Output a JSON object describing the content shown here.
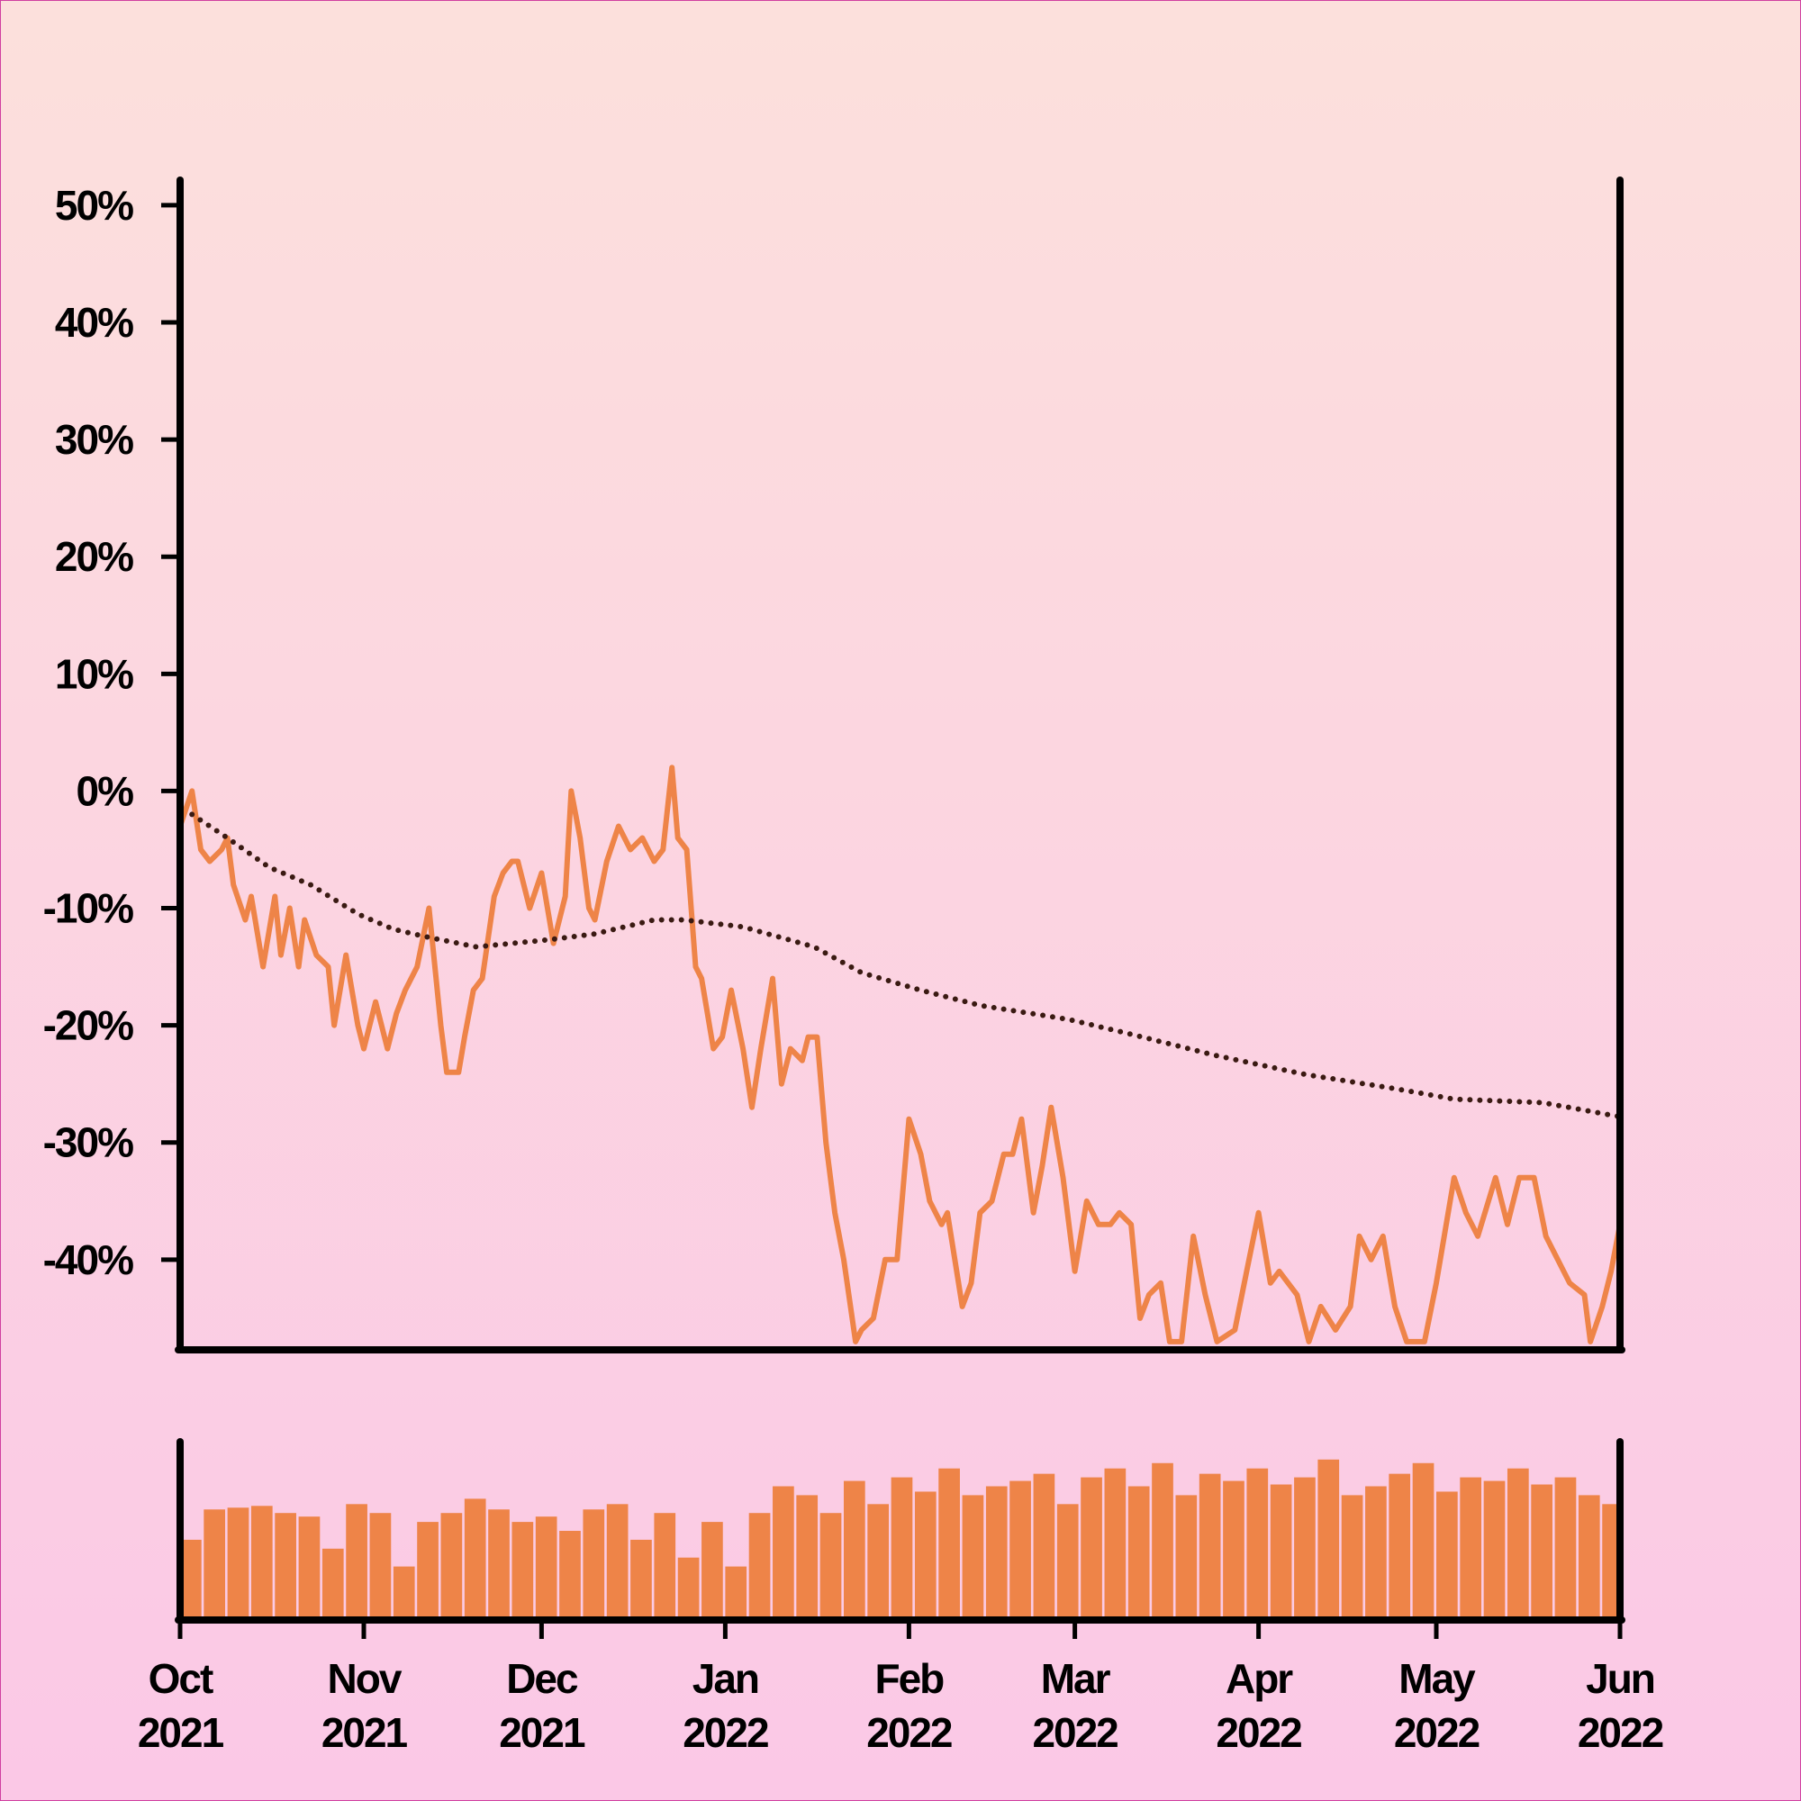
{
  "chart_data": [
    {
      "type": "line",
      "x": [
        0,
        2,
        3.5,
        5,
        7,
        8,
        9,
        11,
        12,
        14,
        16,
        17,
        18.5,
        20,
        21,
        23,
        25,
        26,
        28,
        30,
        31,
        33,
        35,
        36.5,
        38,
        40,
        42,
        44,
        45,
        47,
        48,
        49.5,
        51,
        53,
        54.5,
        56,
        57,
        59,
        61,
        63,
        65,
        66,
        67.5,
        69,
        70,
        72,
        74,
        76,
        78,
        80,
        81.5,
        83,
        84,
        85.5,
        87,
        88,
        90,
        91.5,
        93,
        95,
        96.5,
        98,
        100,
        101.5,
        103,
        105,
        106,
        107.5,
        109,
        110.5,
        112,
        114,
        115,
        117,
        119,
        121,
        123,
        125,
        126.5,
        128.5,
        129.5,
        132,
        133.5,
        135,
        137,
        139,
        140.5,
        142,
        144,
        145.5,
        147,
        149,
        151,
        153,
        155,
        157,
        158.5,
        160.5,
        162,
        163.5,
        165.5,
        167,
        169,
        171,
        173,
        175,
        178,
        180,
        182,
        184,
        185.5,
        188.5,
        190.5,
        192.5,
        195,
        197.5,
        199,
        201,
        203,
        205,
        207,
        210,
        212,
        215,
        217,
        219,
        222,
        224,
        226,
        228.5,
        230.5,
        232.5,
        234.5,
        237,
        238,
        240,
        241.5,
        243
      ],
      "series": [
        {
          "color": "#ee8448",
          "values": [
            -3,
            0,
            -5,
            -6,
            -5,
            -4,
            -8,
            -11,
            -9,
            -15,
            -9,
            -14,
            -10,
            -15,
            -11,
            -14,
            -15,
            -20,
            -14,
            -20,
            -22,
            -18,
            -22,
            -19,
            -17,
            -15,
            -10,
            -20,
            -24,
            -24,
            -21,
            -17,
            -16,
            -9,
            -7,
            -6,
            -6,
            -10,
            -7,
            -13,
            -9,
            0,
            -4,
            -10,
            -11,
            -6,
            -3,
            -5,
            -4,
            -6,
            -5,
            2,
            -4,
            -5,
            -15,
            -16,
            -22,
            -21,
            -17,
            -22,
            -27,
            -22,
            -16,
            -25,
            -22,
            -23,
            -21,
            -21,
            -30,
            -36,
            -40,
            -47,
            -46,
            -45,
            -40,
            -40,
            -28,
            -31,
            -35,
            -37,
            -36,
            -44,
            -42,
            -36,
            -35,
            -31,
            -31,
            -28,
            -36,
            -32,
            -27,
            -33,
            -41,
            -35,
            -37,
            -37,
            -36,
            -37,
            -45,
            -43,
            -42,
            -47,
            -47,
            -38,
            -43,
            -47,
            -46,
            -41,
            -36,
            -42,
            -41,
            -43,
            -47,
            -44,
            -46,
            -44,
            -38,
            -40,
            -38,
            -44,
            -47,
            -47,
            -42,
            -33,
            -36,
            -38,
            -33,
            -37,
            -33,
            -33,
            -38,
            -40,
            -42,
            -43,
            -47,
            -44,
            -41,
            -37
          ]
        },
        {
          "color": "#3a1a12",
          "style": "dotted",
          "x": [
            2,
            8,
            15,
            22,
            30,
            36,
            42,
            50,
            56,
            62,
            70,
            80,
            85,
            95,
            107,
            115,
            125,
            135,
            150,
            160,
            175,
            190,
            205,
            215,
            230,
            243
          ],
          "values": [
            -2,
            -4,
            -6.5,
            -8,
            -10.5,
            -11.8,
            -12.5,
            -13.3,
            -13,
            -12.7,
            -12.2,
            -11,
            -11,
            -11.6,
            -13.3,
            -15.5,
            -17,
            -18.3,
            -19.5,
            -20.7,
            -22.6,
            -24.2,
            -25.4,
            -26.3,
            -26.6,
            -27.8
          ]
        }
      ],
      "xlim": [
        0,
        243
      ],
      "ylim": [
        -47.7,
        52.3
      ],
      "yticks": [
        {
          "value": -40,
          "label": "-40%"
        },
        {
          "value": -30,
          "label": "-30%"
        },
        {
          "value": -20,
          "label": "-20%"
        },
        {
          "value": -10,
          "label": "-10%"
        },
        {
          "value": 0,
          "label": "0%"
        },
        {
          "value": 10,
          "label": "10%"
        },
        {
          "value": 20,
          "label": "20%"
        },
        {
          "value": 30,
          "label": "30%"
        },
        {
          "value": 40,
          "label": "40%"
        },
        {
          "value": 50,
          "label": "50%"
        }
      ]
    },
    {
      "type": "bar",
      "x": [
        0,
        4,
        8,
        12,
        16,
        20,
        24,
        28,
        32,
        36,
        40,
        44,
        48,
        52,
        56,
        60,
        64,
        68,
        72,
        76,
        80,
        84,
        88,
        92,
        96,
        100,
        104,
        108,
        112,
        116,
        120,
        124,
        128,
        132,
        136,
        140,
        144,
        148,
        152,
        156,
        160,
        164,
        168,
        172,
        176,
        180,
        184,
        188,
        192,
        196,
        200,
        204,
        208,
        212,
        216,
        220,
        224,
        228,
        232,
        236,
        240
      ],
      "values": [
        45,
        62,
        63,
        64,
        60,
        58,
        40,
        65,
        60,
        30,
        55,
        60,
        68,
        62,
        55,
        58,
        50,
        62,
        65,
        45,
        60,
        35,
        55,
        30,
        60,
        75,
        70,
        60,
        78,
        65,
        80,
        72,
        85,
        70,
        75,
        78,
        82,
        65,
        80,
        85,
        75,
        88,
        70,
        82,
        78,
        85,
        76,
        80,
        90,
        70,
        75,
        82,
        88,
        72,
        80,
        78,
        85,
        76,
        80,
        70,
        65
      ],
      "color": "#ee8448",
      "xlim": [
        0,
        243
      ],
      "ylim": [
        0,
        100
      ],
      "xticks": [
        {
          "value": 0,
          "label": "Oct 2021"
        },
        {
          "value": 31,
          "label": "Nov 2021"
        },
        {
          "value": 61,
          "label": "Dec 2021"
        },
        {
          "value": 92,
          "label": "Jan 2022"
        },
        {
          "value": 123,
          "label": "Feb 2022"
        },
        {
          "value": 151,
          "label": "Mar 2022"
        },
        {
          "value": 182,
          "label": "Apr 2022"
        },
        {
          "value": 212,
          "label": "May 2022"
        },
        {
          "value": 243,
          "label": "Jun 2022"
        }
      ]
    }
  ]
}
